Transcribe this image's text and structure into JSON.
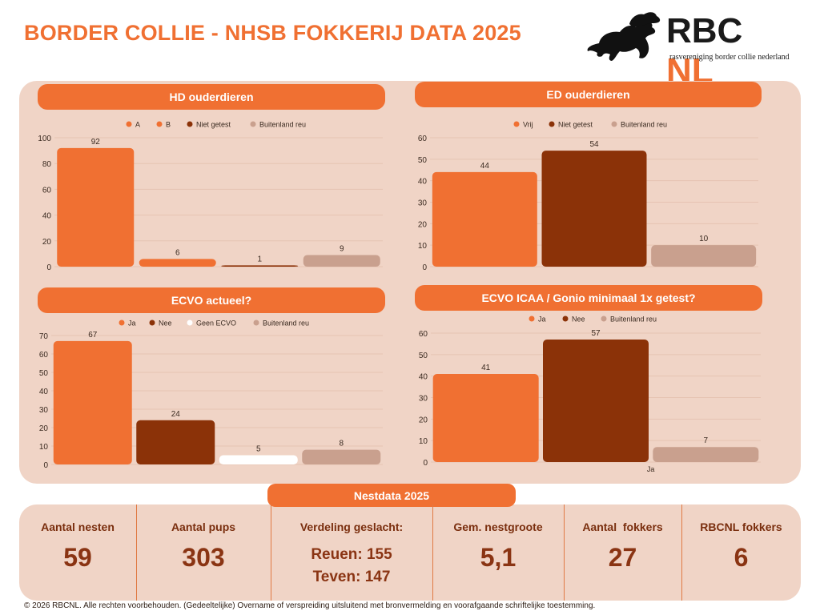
{
  "header": {
    "title": "BORDER COLLIE - NHSB FOKKERIJ DATA 2025",
    "logo_text_main": "RBC",
    "logo_text_accent": "NL",
    "logo_subtitle": "rasvereniging border collie nederland"
  },
  "colors": {
    "orange": "#f07032",
    "dark_brown": "#8b3208",
    "white": "#ffffff",
    "tan": "#c9a08e",
    "panel_bg": "#f0d4c6"
  },
  "chart_data": [
    {
      "type": "bar",
      "title": "HD ouderdieren",
      "categories": [
        "A",
        "B",
        "Niet getest",
        "Buitenland reu"
      ],
      "values": [
        92,
        6,
        1,
        9
      ],
      "colors": [
        "#f07032",
        "#f07032",
        "#8b3208",
        "#c9a08e"
      ],
      "legend": [
        "A",
        "B",
        "Niet getest",
        "Buitenland reu"
      ],
      "yticks": [
        0,
        20,
        40,
        60,
        80,
        100
      ],
      "ylim": [
        0,
        100
      ],
      "xlabel": "",
      "ylabel": "",
      "grid": true,
      "legend_position": "top"
    },
    {
      "type": "bar",
      "title": "ED ouderdieren",
      "categories": [
        "Vrij",
        "Niet getest",
        "Buitenland reu"
      ],
      "values": [
        44,
        54,
        10
      ],
      "colors": [
        "#f07032",
        "#8b3208",
        "#c9a08e"
      ],
      "legend": [
        "Vrij",
        "Niet getest",
        "Buitenland reu"
      ],
      "yticks": [
        0,
        10,
        20,
        30,
        40,
        50,
        60
      ],
      "ylim": [
        0,
        60
      ],
      "xlabel": "",
      "ylabel": "",
      "grid": true,
      "legend_position": "top"
    },
    {
      "type": "bar",
      "title": "ECVO actueel?",
      "categories": [
        "Ja",
        "Nee",
        "Geen ECVO",
        "Buitenland reu"
      ],
      "values": [
        67,
        24,
        5,
        8
      ],
      "colors": [
        "#f07032",
        "#8b3208",
        "#ffffff",
        "#c9a08e"
      ],
      "legend": [
        "Ja",
        "Nee",
        "Geen ECVO",
        "Buitenland reu"
      ],
      "yticks": [
        0,
        10,
        20,
        30,
        40,
        50,
        60,
        70
      ],
      "ylim": [
        0,
        70
      ],
      "xlabel": "",
      "ylabel": "",
      "grid": true,
      "legend_position": "top"
    },
    {
      "type": "bar",
      "title": "ECVO ICAA / Gonio minimaal 1x getest?",
      "categories": [
        "Ja",
        "Nee",
        "Buitenland reu"
      ],
      "values": [
        41,
        57,
        7
      ],
      "colors": [
        "#f07032",
        "#8b3208",
        "#c9a08e"
      ],
      "legend": [
        "Ja",
        "Nee",
        "Buitenland reu"
      ],
      "yticks": [
        0,
        10,
        20,
        30,
        40,
        50,
        60
      ],
      "ylim": [
        0,
        60
      ],
      "xtick_label": "Ja",
      "xlabel": "",
      "ylabel": "",
      "grid": true,
      "legend_position": "top"
    }
  ],
  "nest": {
    "title": "Nestdata 2025",
    "stats": [
      {
        "label": "Aantal nesten",
        "value": "59"
      },
      {
        "label": "Aantal pups",
        "value": "303"
      },
      {
        "label": "Verdeling geslacht:",
        "line1": "Reuen: 155",
        "line2": "Teven: 147"
      },
      {
        "label": "Gem. nestgroote",
        "value": "5,1"
      },
      {
        "label": "Aantal  fokkers",
        "value": "27"
      },
      {
        "label": "RBCNL fokkers",
        "value": "6"
      }
    ]
  },
  "footer": {
    "text": "© 2026 RBCNL. Alle rechten voorbehouden. (Gedeeltelijke) Overname of verspreiding uitsluitend met bronvermelding en voorafgaande schriftelijke toestemming."
  }
}
